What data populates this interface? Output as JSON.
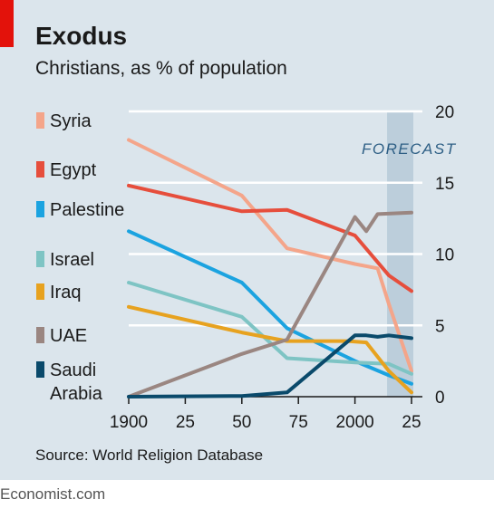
{
  "header": {
    "title": "Exodus",
    "subtitle": "Christians, as % of population"
  },
  "footer": {
    "source": "Source: World Religion Database",
    "publisher": "Economist.com"
  },
  "colors": {
    "background": "#dbe5ec",
    "accent": "#e3120b",
    "forecast_band": "#b6cad8"
  },
  "chart_data": {
    "type": "line",
    "title": "Exodus",
    "subtitle": "Christians, as % of population",
    "xlabel": "",
    "ylabel": "",
    "xlim": [
      1900,
      2025
    ],
    "ylim": [
      0,
      20
    ],
    "x_ticks": [
      1900,
      1925,
      1950,
      1975,
      2000,
      2025
    ],
    "x_tick_labels": [
      "1900",
      "25",
      "50",
      "75",
      "2000",
      "25"
    ],
    "y_ticks": [
      0,
      5,
      10,
      15,
      20
    ],
    "y_tick_labels": [
      "0",
      "5",
      "10",
      "15",
      "20"
    ],
    "y_axis_side": "right",
    "grid": "horizontal",
    "legend_position": "left",
    "forecast": {
      "label": "FORECAST",
      "from": 2015,
      "to": 2025
    },
    "series": [
      {
        "name": "Syria",
        "color": "#f4a58a",
        "x": [
          1900,
          1950,
          1970,
          2000,
          2010,
          2015,
          2025
        ],
        "y": [
          18.0,
          14.1,
          10.4,
          9.3,
          9.0,
          6.5,
          1.8
        ]
      },
      {
        "name": "Egypt",
        "color": "#e64e3c",
        "x": [
          1900,
          1950,
          1970,
          2000,
          2015,
          2025
        ],
        "y": [
          14.8,
          13.0,
          13.1,
          11.3,
          8.5,
          7.4
        ]
      },
      {
        "name": "Palestine",
        "color": "#1ba3e0",
        "x": [
          1900,
          1950,
          1970,
          2000,
          2015,
          2025
        ],
        "y": [
          11.6,
          8.0,
          4.8,
          2.5,
          1.5,
          0.9
        ]
      },
      {
        "name": "Israel",
        "color": "#7ec4c4",
        "x": [
          1900,
          1950,
          1970,
          2000,
          2015,
          2025
        ],
        "y": [
          8.0,
          5.6,
          2.7,
          2.4,
          2.3,
          1.6
        ]
      },
      {
        "name": "Iraq",
        "color": "#e7a21f",
        "x": [
          1900,
          1950,
          1970,
          1997,
          2005,
          2015,
          2025
        ],
        "y": [
          6.3,
          4.5,
          3.9,
          3.9,
          3.8,
          1.8,
          0.3
        ]
      },
      {
        "name": "UAE",
        "color": "#9a8681",
        "x": [
          1900,
          1950,
          1970,
          2000,
          2005,
          2010,
          2025
        ],
        "y": [
          0.0,
          3.0,
          4.0,
          12.6,
          11.6,
          12.8,
          12.9
        ]
      },
      {
        "name": "Saudi Arabia",
        "label_lines": [
          "Saudi",
          "Arabia"
        ],
        "color": "#0a4a6b",
        "x": [
          1900,
          1950,
          1970,
          2000,
          2005,
          2010,
          2015,
          2020,
          2025
        ],
        "y": [
          0.0,
          0.05,
          0.3,
          4.3,
          4.3,
          4.2,
          4.3,
          4.2,
          4.1
        ]
      }
    ]
  }
}
